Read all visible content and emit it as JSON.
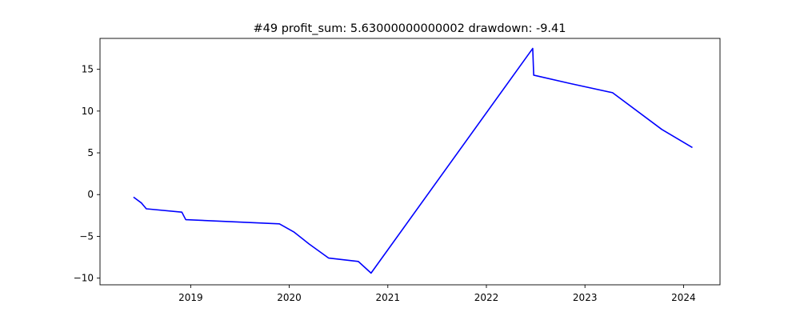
{
  "chart_data": {
    "type": "line",
    "title": "#49   profit_sum: 5.63000000000002 drawdown: -9.41",
    "xlabel": "",
    "ylabel": "",
    "grid": false,
    "xlim": [
      2018.08,
      2024.37
    ],
    "ylim": [
      -10.8,
      18.7
    ],
    "x_ticks": [
      {
        "value": 2019,
        "label": "2019"
      },
      {
        "value": 2020,
        "label": "2020"
      },
      {
        "value": 2021,
        "label": "2021"
      },
      {
        "value": 2022,
        "label": "2022"
      },
      {
        "value": 2023,
        "label": "2023"
      },
      {
        "value": 2024,
        "label": "2024"
      }
    ],
    "y_ticks": [
      {
        "value": 15,
        "label": "15"
      },
      {
        "value": 10,
        "label": "10"
      },
      {
        "value": 5,
        "label": "5"
      },
      {
        "value": 0,
        "label": "0"
      },
      {
        "value": -5,
        "label": "−5"
      },
      {
        "value": -10,
        "label": "−10"
      }
    ],
    "series": [
      {
        "color": "#0000ff",
        "points": [
          [
            2018.42,
            -0.3
          ],
          [
            2018.5,
            -1.0
          ],
          [
            2018.55,
            -1.7
          ],
          [
            2018.91,
            -2.1
          ],
          [
            2018.95,
            -3.0
          ],
          [
            2019.9,
            -3.5
          ],
          [
            2020.05,
            -4.5
          ],
          [
            2020.2,
            -5.9
          ],
          [
            2020.4,
            -7.6
          ],
          [
            2020.7,
            -8.0
          ],
          [
            2020.83,
            -9.4
          ],
          [
            2022.47,
            17.5
          ],
          [
            2022.48,
            14.3
          ],
          [
            2022.85,
            13.3
          ],
          [
            2023.28,
            12.2
          ],
          [
            2023.78,
            7.8
          ],
          [
            2024.09,
            5.63
          ]
        ]
      }
    ]
  }
}
